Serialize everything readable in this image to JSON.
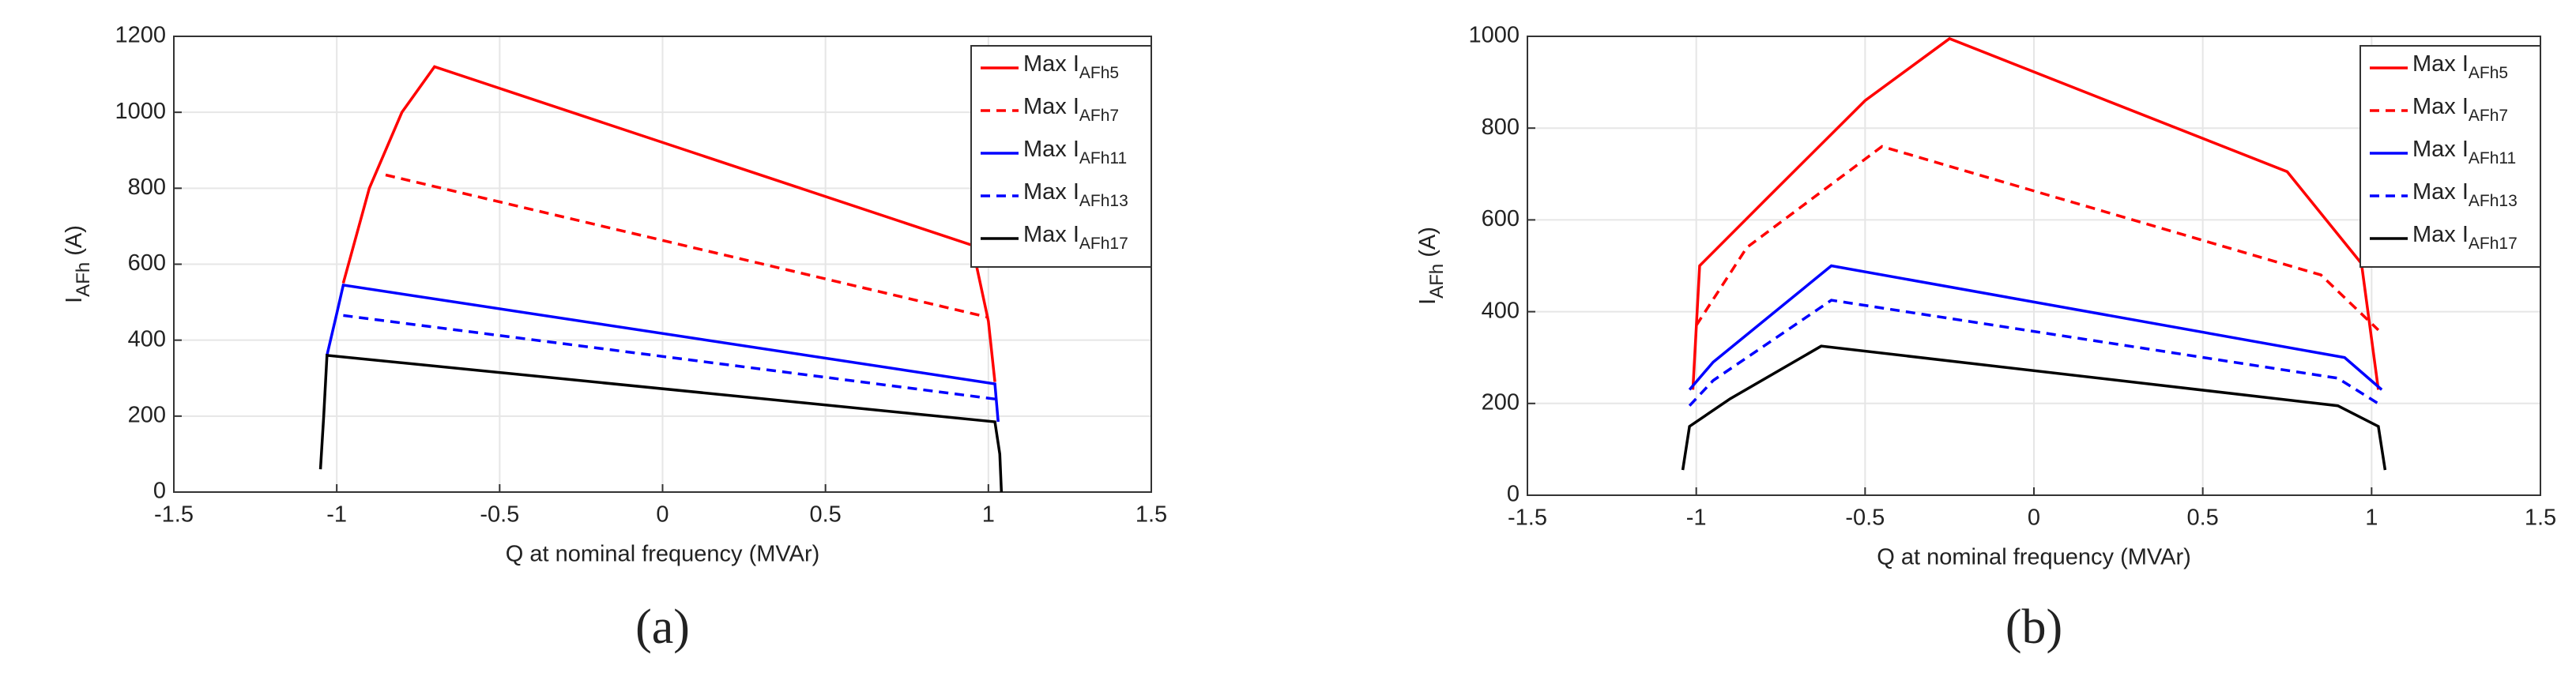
{
  "chart_data": [
    {
      "type": "line",
      "caption": "(a)",
      "xlabel": "Q at nominal frequency (MVAr)",
      "ylabel": {
        "text": "I",
        "subscript": "AFh",
        "unit": "(A)"
      },
      "xlim": [
        -1.5,
        1.5
      ],
      "xticks": [
        -1.5,
        -1,
        -0.5,
        0,
        0.5,
        1,
        1.5
      ],
      "ylim": [
        0,
        1200
      ],
      "yticks": [
        0,
        200,
        400,
        600,
        800,
        1000,
        1200
      ],
      "grid": true,
      "legend": "upper right",
      "series": [
        {
          "name": "Max I",
          "subscript": "AFh5",
          "color": "#ff0000",
          "dash": false,
          "x": [
            -0.98,
            -0.9,
            -0.8,
            -0.7,
            0.95,
            1.0,
            1.02
          ],
          "values": [
            550,
            800,
            1000,
            1120,
            650,
            450,
            290
          ]
        },
        {
          "name": "Max I",
          "subscript": "AFh7",
          "color": "#ff0000",
          "dash": true,
          "x": [
            -0.85,
            1.0
          ],
          "values": [
            835,
            460
          ]
        },
        {
          "name": "Max I",
          "subscript": "AFh11",
          "color": "#0000ff",
          "dash": false,
          "x": [
            -1.03,
            -1.0,
            -0.98,
            1.02,
            1.03
          ],
          "values": [
            360,
            470,
            545,
            285,
            185
          ]
        },
        {
          "name": "Max I",
          "subscript": "AFh13",
          "color": "#0000ff",
          "dash": true,
          "x": [
            -0.98,
            1.02
          ],
          "values": [
            465,
            245
          ]
        },
        {
          "name": "Max I",
          "subscript": "AFh17",
          "color": "#000000",
          "dash": false,
          "x": [
            -1.05,
            -1.04,
            -1.03,
            1.02,
            1.035,
            1.04
          ],
          "values": [
            60,
            200,
            360,
            185,
            100,
            0
          ]
        }
      ]
    },
    {
      "type": "line",
      "caption": "(b)",
      "xlabel": "Q at nominal frequency (MVAr)",
      "ylabel": {
        "text": "I",
        "subscript": "AFh",
        "unit": "(A)"
      },
      "xlim": [
        -1.5,
        1.5
      ],
      "xticks": [
        -1.5,
        -1,
        -0.5,
        0,
        0.5,
        1,
        1.5
      ],
      "ylim": [
        0,
        1000
      ],
      "yticks": [
        0,
        200,
        400,
        600,
        800,
        1000
      ],
      "grid": true,
      "legend": "upper right",
      "series": [
        {
          "name": "Max I",
          "subscript": "AFh5",
          "color": "#ff0000",
          "dash": false,
          "x": [
            -1.01,
            -0.99,
            -0.8,
            -0.5,
            -0.25,
            0.75,
            0.97,
            1.02
          ],
          "values": [
            230,
            500,
            640,
            860,
            995,
            705,
            505,
            230
          ]
        },
        {
          "name": "Max I",
          "subscript": "AFh7",
          "color": "#ff0000",
          "dash": true,
          "x": [
            -1.0,
            -0.85,
            -0.45,
            0.85,
            1.02
          ],
          "values": [
            370,
            540,
            760,
            480,
            360
          ]
        },
        {
          "name": "Max I",
          "subscript": "AFh11",
          "color": "#0000ff",
          "dash": false,
          "x": [
            -1.02,
            -0.95,
            -0.6,
            0.92,
            1.03
          ],
          "values": [
            230,
            290,
            500,
            300,
            230
          ]
        },
        {
          "name": "Max I",
          "subscript": "AFh13",
          "color": "#0000ff",
          "dash": true,
          "x": [
            -1.02,
            -0.95,
            -0.6,
            0.9,
            1.03
          ],
          "values": [
            195,
            250,
            425,
            255,
            195
          ]
        },
        {
          "name": "Max I",
          "subscript": "AFh17",
          "color": "#000000",
          "dash": false,
          "x": [
            -1.04,
            -1.02,
            -0.9,
            -0.63,
            0.9,
            1.02,
            1.04
          ],
          "values": [
            55,
            150,
            210,
            325,
            195,
            150,
            55
          ]
        }
      ]
    }
  ]
}
